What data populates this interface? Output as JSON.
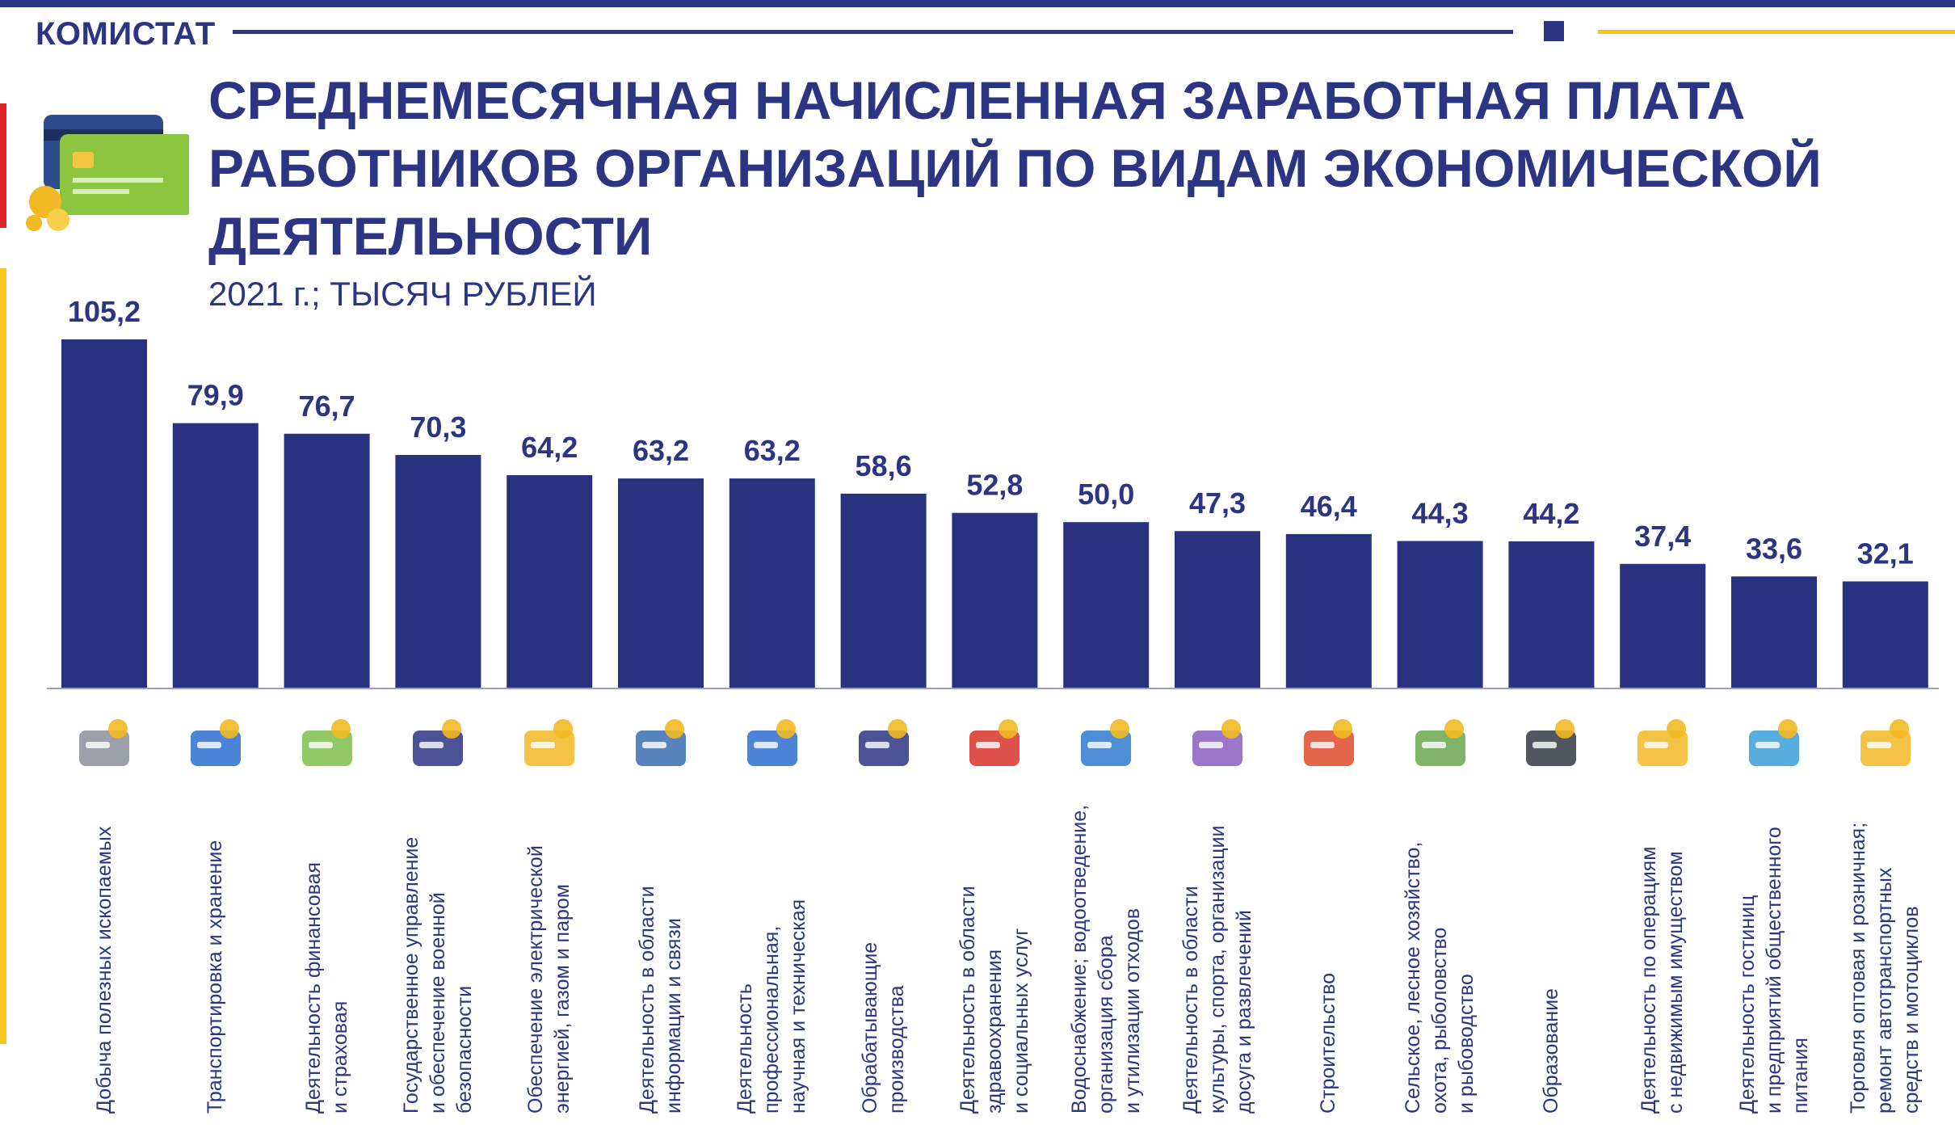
{
  "header": {
    "brand": "КОМИСТАТ",
    "title": "СРЕДНЕМЕСЯЧНАЯ НАЧИСЛЕННАЯ ЗАРАБОТНАЯ ПЛАТА РАБОТНИКОВ ОРГАНИЗАЦИЙ ПО ВИДАМ ЭКОНОМИЧЕСКОЙ ДЕЯТЕЛЬНОСТИ",
    "subtitle": "2021 г.; ТЫСЯЧ РУБЛЕЙ"
  },
  "colors": {
    "bar": "#29327f",
    "brand_blue": "#2b3582",
    "accent_gold": "#f7c51b",
    "accent_red": "#e0222c"
  },
  "chart_data": {
    "type": "bar",
    "title": "СРЕДНЕМЕСЯЧНАЯ НАЧИСЛЕННАЯ ЗАРАБОТНАЯ ПЛАТА РАБОТНИКОВ ОРГАНИЗАЦИЙ ПО ВИДАМ ЭКОНОМИЧЕСКОЙ ДЕЯТЕЛЬНОСТИ",
    "subtitle": "2021 г.; ТЫСЯЧ РУБЛЕЙ",
    "value_labels": [
      "105,2",
      "79,9",
      "76,7",
      "70,3",
      "64,2",
      "63,2",
      "63,2",
      "58,6",
      "52,8",
      "50,0",
      "47,3",
      "46,4",
      "44,3",
      "44,2",
      "37,4",
      "33,6",
      "32,1"
    ],
    "values": [
      105.2,
      79.9,
      76.7,
      70.3,
      64.2,
      63.2,
      63.2,
      58.6,
      52.8,
      50.0,
      47.3,
      46.4,
      44.3,
      44.2,
      37.4,
      33.6,
      32.1
    ],
    "categories": [
      [
        "Добыча полезных ископаемых"
      ],
      [
        "Транспортировка и хранение"
      ],
      [
        "Деятельность финансовая",
        "и страховая"
      ],
      [
        "Государственное управление",
        "и обеспечение военной",
        "безопасности"
      ],
      [
        "Обеспечение электрической",
        "энергией, газом и паром"
      ],
      [
        "Деятельность в области",
        "информации и связи"
      ],
      [
        "Деятельность",
        "профессиональная,",
        "научная и техническая"
      ],
      [
        "Обрабатывающие",
        "производства"
      ],
      [
        "Деятельность в области",
        "здравоохранения",
        "и социальных услуг"
      ],
      [
        "Водоснабжение; водоотведение,",
        "организация сбора",
        "и утилизации отходов"
      ],
      [
        "Деятельность в области",
        "культуры, спорта, организации",
        "досуга и развлечений"
      ],
      [
        "Строительство"
      ],
      [
        "Сельское, лесное хозяйство,",
        "охота, рыболовство",
        "и рыбоводство"
      ],
      [
        "Образование"
      ],
      [
        "Деятельность по операциям",
        "с недвижимым имуществом"
      ],
      [
        "Деятельность гостиниц",
        "и предприятий общественного",
        "питания"
      ],
      [
        "Торговля оптовая и розничная;",
        "ремонт автотранспортных",
        "средств и мотоциклов"
      ]
    ],
    "icons": [
      "oil-pump-icon",
      "bus-truck-icon",
      "finance-document-icon",
      "government-official-icon",
      "energy-lightbulb-icon",
      "phone-mail-icon",
      "microscope-icon",
      "hammer-gear-icon",
      "stethoscope-icon",
      "water-pipe-icon",
      "theatre-tickets-icon",
      "brick-wall-icon",
      "vegetables-icon",
      "graduation-cap-icon",
      "house-coins-icon",
      "food-dish-icon",
      "shop-coins-icon"
    ],
    "ylim": [
      0,
      110
    ],
    "grid": false,
    "legend": "none"
  }
}
